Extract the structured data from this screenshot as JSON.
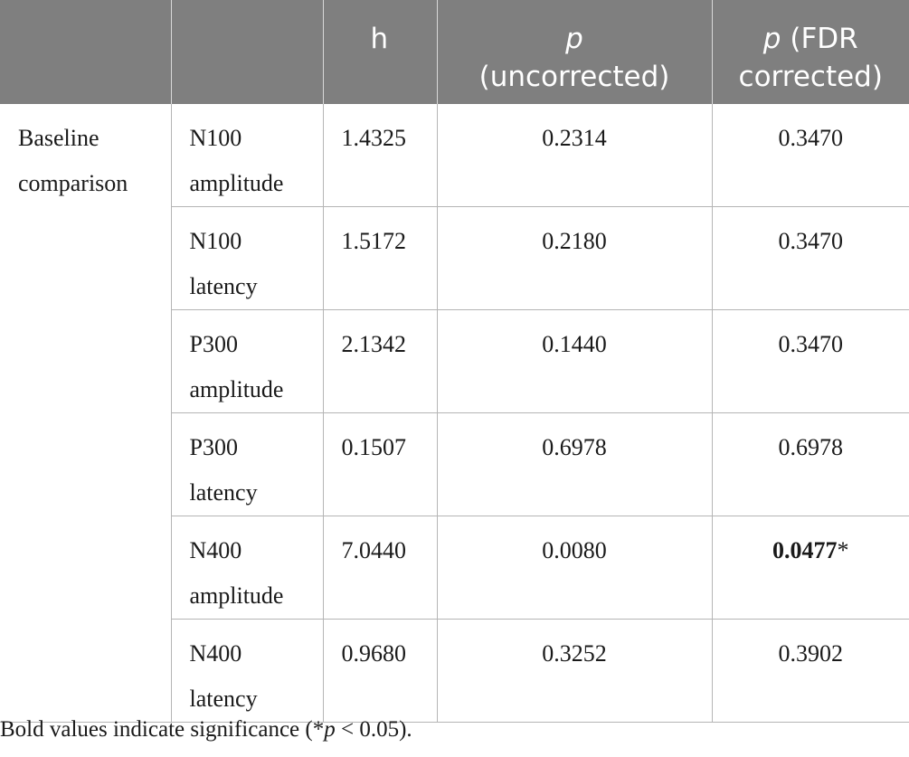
{
  "table": {
    "headers": {
      "col0": "",
      "col1": "",
      "h": "h",
      "p_uncorrected": {
        "italic": "p",
        "rest": "(uncorrected)"
      },
      "p_fdr": {
        "italic": "p",
        "rest": "(FDR corrected)"
      }
    },
    "group_label": [
      "Baseline",
      "comparison"
    ],
    "rows": [
      {
        "measure": [
          "N100",
          "amplitude"
        ],
        "h": "1.4325",
        "p_uncorrected": "0.2314",
        "p_fdr": "0.3470",
        "p_fdr_mark": "",
        "significant": false
      },
      {
        "measure": [
          "N100",
          "latency"
        ],
        "h": "1.5172",
        "p_uncorrected": "0.2180",
        "p_fdr": "0.3470",
        "p_fdr_mark": "",
        "significant": false
      },
      {
        "measure": [
          "P300",
          "amplitude"
        ],
        "h": "2.1342",
        "p_uncorrected": "0.1440",
        "p_fdr": "0.3470",
        "p_fdr_mark": "",
        "significant": false
      },
      {
        "measure": [
          "P300",
          "latency"
        ],
        "h": "0.1507",
        "p_uncorrected": "0.6978",
        "p_fdr": "0.6978",
        "p_fdr_mark": "",
        "significant": false
      },
      {
        "measure": [
          "N400",
          "amplitude"
        ],
        "h": "7.0440",
        "p_uncorrected": "0.0080",
        "p_fdr": "0.0477",
        "p_fdr_mark": "*",
        "significant": true
      },
      {
        "measure": [
          "N400",
          "latency"
        ],
        "h": "0.9680",
        "p_uncorrected": "0.3252",
        "p_fdr": "0.3902",
        "p_fdr_mark": "",
        "significant": false
      }
    ]
  },
  "footnote": {
    "before": "Bold values indicate significance (*",
    "italic": "p",
    "after": " < 0.05)."
  },
  "colors": {
    "header_background": "#7f7f7f",
    "header_text": "#ffffff",
    "grid": "#b5b5b5"
  }
}
